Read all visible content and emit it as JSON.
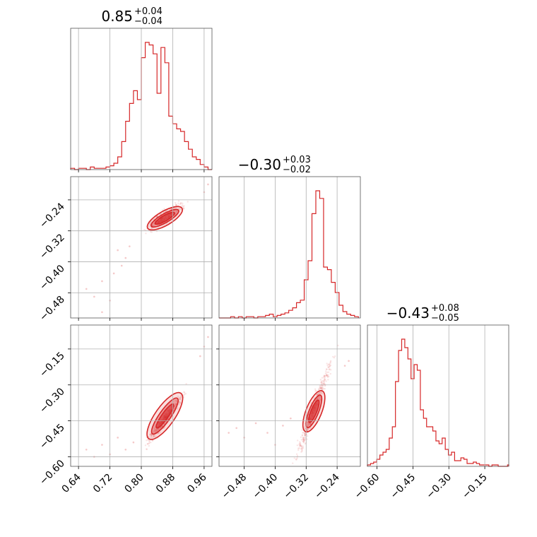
{
  "chart_data": {
    "type": "corner",
    "color": "#d62728",
    "grid": true,
    "parameters": [
      {
        "range": [
          0.62,
          0.98
        ],
        "ticks": [
          "0.64",
          "0.72",
          "0.80",
          "0.88",
          "0.96"
        ],
        "tick_values": [
          0.64,
          0.72,
          0.8,
          0.88,
          0.96
        ],
        "title": {
          "median": "0.85",
          "plus": "+0.04",
          "minus": "−0.04"
        }
      },
      {
        "range": [
          -0.545,
          -0.18
        ],
        "ticks": [
          "−0.48",
          "−0.40",
          "−0.32",
          "−0.24"
        ],
        "tick_values": [
          -0.48,
          -0.4,
          -0.32,
          -0.24
        ],
        "title": {
          "median": "−0.30",
          "plus": "+0.03",
          "minus": "−0.02"
        }
      },
      {
        "range": [
          -0.64,
          -0.05
        ],
        "ticks": [
          "−0.60",
          "−0.45",
          "−0.30",
          "−0.15"
        ],
        "tick_values": [
          -0.6,
          -0.45,
          -0.3,
          -0.15
        ],
        "title": {
          "median": "−0.43",
          "plus": "+0.08",
          "minus": "−0.05"
        }
      }
    ],
    "histograms": [
      {
        "bins_x": [
          0.62,
          0.63,
          0.64,
          0.65,
          0.66,
          0.67,
          0.68,
          0.69,
          0.7,
          0.71,
          0.72,
          0.73,
          0.74,
          0.75,
          0.76,
          0.77,
          0.78,
          0.79,
          0.8,
          0.81,
          0.82,
          0.83,
          0.84,
          0.85,
          0.86,
          0.87,
          0.88,
          0.89,
          0.9,
          0.91,
          0.92,
          0.93,
          0.94,
          0.95,
          0.96,
          0.97,
          0.98
        ],
        "counts": [
          1,
          0,
          1,
          1,
          0,
          2,
          1,
          1,
          1,
          2,
          3,
          5,
          10,
          22,
          38,
          52,
          62,
          55,
          88,
          100,
          98,
          91,
          60,
          96,
          84,
          42,
          36,
          32,
          30,
          22,
          16,
          10,
          8,
          4,
          2,
          0
        ]
      },
      {
        "bins_x": [
          -0.545,
          -0.535,
          -0.525,
          -0.515,
          -0.505,
          -0.495,
          -0.485,
          -0.475,
          -0.465,
          -0.455,
          -0.445,
          -0.435,
          -0.425,
          -0.415,
          -0.405,
          -0.395,
          -0.385,
          -0.375,
          -0.365,
          -0.355,
          -0.345,
          -0.335,
          -0.325,
          -0.315,
          -0.305,
          -0.295,
          -0.285,
          -0.275,
          -0.265,
          -0.255,
          -0.245,
          -0.235,
          -0.225,
          -0.215,
          -0.205,
          -0.195,
          -0.185
        ],
        "counts": [
          0,
          0,
          0,
          1,
          0,
          1,
          0,
          1,
          1,
          0,
          1,
          1,
          2,
          3,
          1,
          2,
          3,
          4,
          6,
          8,
          12,
          14,
          30,
          45,
          82,
          100,
          94,
          40,
          38,
          28,
          20,
          10,
          5,
          3,
          2,
          1
        ]
      },
      {
        "bins_x": [
          -0.64,
          -0.627,
          -0.614,
          -0.601,
          -0.588,
          -0.575,
          -0.562,
          -0.549,
          -0.536,
          -0.523,
          -0.51,
          -0.497,
          -0.484,
          -0.471,
          -0.458,
          -0.445,
          -0.432,
          -0.419,
          -0.406,
          -0.393,
          -0.38,
          -0.367,
          -0.354,
          -0.341,
          -0.328,
          -0.315,
          -0.302,
          -0.289,
          -0.276,
          -0.263,
          -0.25,
          -0.237,
          -0.224,
          -0.211,
          -0.198,
          -0.185,
          -0.172,
          -0.159,
          -0.146,
          -0.133,
          -0.12,
          -0.107,
          -0.094,
          -0.081,
          -0.068,
          -0.055,
          -0.05
        ],
        "counts": [
          1,
          2,
          3,
          5,
          8,
          10,
          12,
          20,
          28,
          60,
          82,
          90,
          84,
          76,
          62,
          72,
          68,
          40,
          34,
          28,
          28,
          25,
          18,
          16,
          20,
          12,
          8,
          10,
          4,
          4,
          6,
          5,
          2,
          2,
          3,
          2,
          1,
          1,
          1,
          0,
          1,
          1,
          0,
          0,
          0,
          1
        ]
      }
    ],
    "scatter_pairs": [
      {
        "x_param": 0,
        "y_param": 1,
        "slope": 0.6,
        "intercept": -0.8,
        "spread": 0.012,
        "contour_centers": [
          [
            0.83,
            -0.305
          ],
          [
            0.86,
            -0.287
          ],
          [
            0.89,
            -0.27
          ]
        ],
        "outliers": [
          [
            0.66,
            -0.47
          ],
          [
            0.68,
            -0.49
          ],
          [
            0.7,
            -0.45
          ],
          [
            0.72,
            -0.5
          ],
          [
            0.73,
            -0.43
          ],
          [
            0.75,
            -0.41
          ],
          [
            0.76,
            -0.39
          ],
          [
            0.77,
            -0.36
          ],
          [
            0.7,
            -0.53
          ],
          [
            0.74,
            -0.37
          ],
          [
            0.96,
            -0.22
          ],
          [
            0.97,
            -0.2
          ]
        ]
      },
      {
        "x_param": 0,
        "y_param": 2,
        "slope": 2.1,
        "intercept": -2.25,
        "spread": 0.018,
        "contour_centers": [
          [
            0.83,
            -0.5
          ],
          [
            0.86,
            -0.43
          ],
          [
            0.89,
            -0.36
          ]
        ],
        "outliers": [
          [
            0.66,
            -0.57
          ],
          [
            0.68,
            -0.6
          ],
          [
            0.7,
            -0.55
          ],
          [
            0.72,
            -0.59
          ],
          [
            0.74,
            -0.52
          ],
          [
            0.76,
            -0.57
          ],
          [
            0.78,
            -0.54
          ],
          [
            0.95,
            -0.18
          ],
          [
            0.96,
            -0.14
          ],
          [
            0.97,
            -0.1
          ]
        ]
      },
      {
        "x_param": 1,
        "y_param": 2,
        "slope": 4.4,
        "intercept": 0.92,
        "spread": 0.03,
        "contour_centers": [
          [
            -0.315,
            -0.47
          ],
          [
            -0.3,
            -0.42
          ],
          [
            -0.285,
            -0.35
          ]
        ],
        "outliers": [
          [
            -0.52,
            -0.5
          ],
          [
            -0.5,
            -0.48
          ],
          [
            -0.48,
            -0.52
          ],
          [
            -0.45,
            -0.46
          ],
          [
            -0.42,
            -0.5
          ],
          [
            -0.4,
            -0.55
          ],
          [
            -0.38,
            -0.47
          ],
          [
            -0.36,
            -0.44
          ],
          [
            -0.22,
            -0.22
          ],
          [
            -0.21,
            -0.2
          ]
        ]
      }
    ]
  }
}
